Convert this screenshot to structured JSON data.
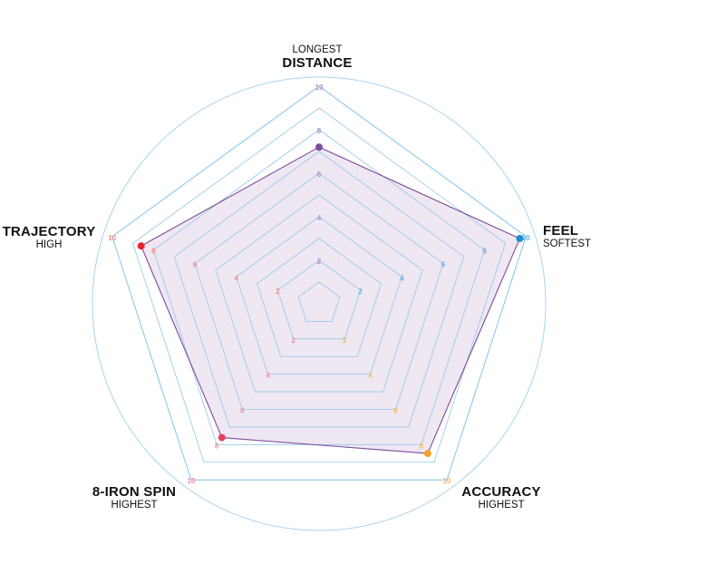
{
  "chart_data": {
    "type": "radar",
    "axes": [
      {
        "label": "DISTANCE",
        "sublabel": "LONGEST",
        "value": 7.2,
        "color": "#7b4c9a"
      },
      {
        "label": "FEEL",
        "sublabel": "SOFTEST",
        "value": 9.7,
        "color": "#1f8fc9"
      },
      {
        "label": "ACCURACY",
        "sublabel": "HIGHEST",
        "value": 8.5,
        "color": "#f2a324"
      },
      {
        "label": "8-IRON SPIN",
        "sublabel": "HIGHEST",
        "value": 7.6,
        "color": "#e0415f"
      },
      {
        "label": "TRAJECTORY",
        "sublabel": "HIGH",
        "value": 8.6,
        "color": "#e5252e"
      }
    ],
    "tick_values": [
      "2",
      "4",
      "6",
      "8",
      "10"
    ],
    "tick_colors": [
      "#b18fcc",
      "#6cb4e0",
      "#f4b866",
      "#ee8fa0",
      "#ee8f8f"
    ],
    "range": [
      0,
      10
    ],
    "ring_values": [
      1,
      2,
      3,
      4,
      5,
      6,
      7,
      8,
      9,
      10
    ],
    "colors": {
      "grid": "#8ec9e8",
      "outer_circle": "#a8d5ee",
      "fill": "#ede4f1",
      "outline": "#7b4c9a"
    }
  }
}
